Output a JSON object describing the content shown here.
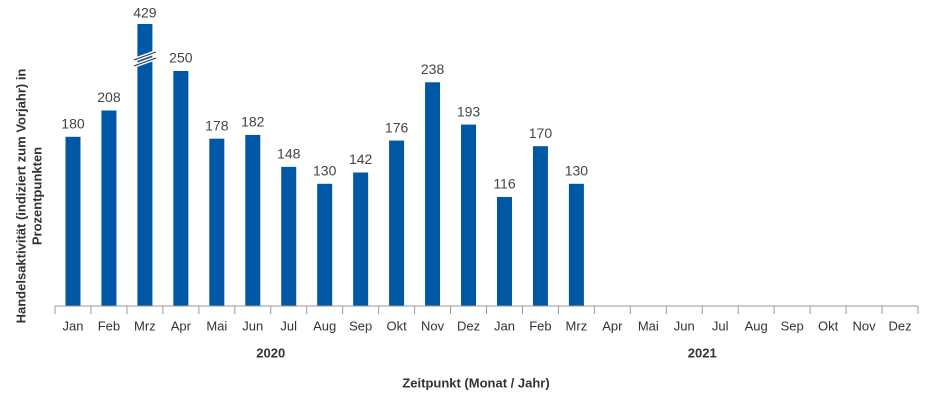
{
  "chart_data": {
    "type": "bar",
    "ylabel": [
      "Handelsaktivität (indiziert zum Vorjahr) in",
      "Prozentpunkten"
    ],
    "xlabel": "Zeitpunkt (Monat / Jahr)",
    "color": "#0057a3",
    "ylim": [
      0,
      300
    ],
    "axis_break": true,
    "groups": [
      {
        "label": "2020",
        "categories": [
          "Jan",
          "Feb",
          "Mrz",
          "Apr",
          "Mai",
          "Jun",
          "Jul",
          "Aug",
          "Sep",
          "Okt",
          "Nov",
          "Dez"
        ],
        "values": [
          180,
          208,
          429,
          250,
          178,
          182,
          148,
          130,
          142,
          176,
          238,
          193
        ]
      },
      {
        "label": "2021",
        "categories": [
          "Jan",
          "Feb",
          "Mrz",
          "Apr",
          "Mai",
          "Jun",
          "Jul",
          "Aug",
          "Sep",
          "Okt",
          "Nov",
          "Dez"
        ],
        "values": [
          116,
          170,
          130,
          null,
          null,
          null,
          null,
          null,
          null,
          null,
          null,
          null
        ]
      }
    ]
  }
}
